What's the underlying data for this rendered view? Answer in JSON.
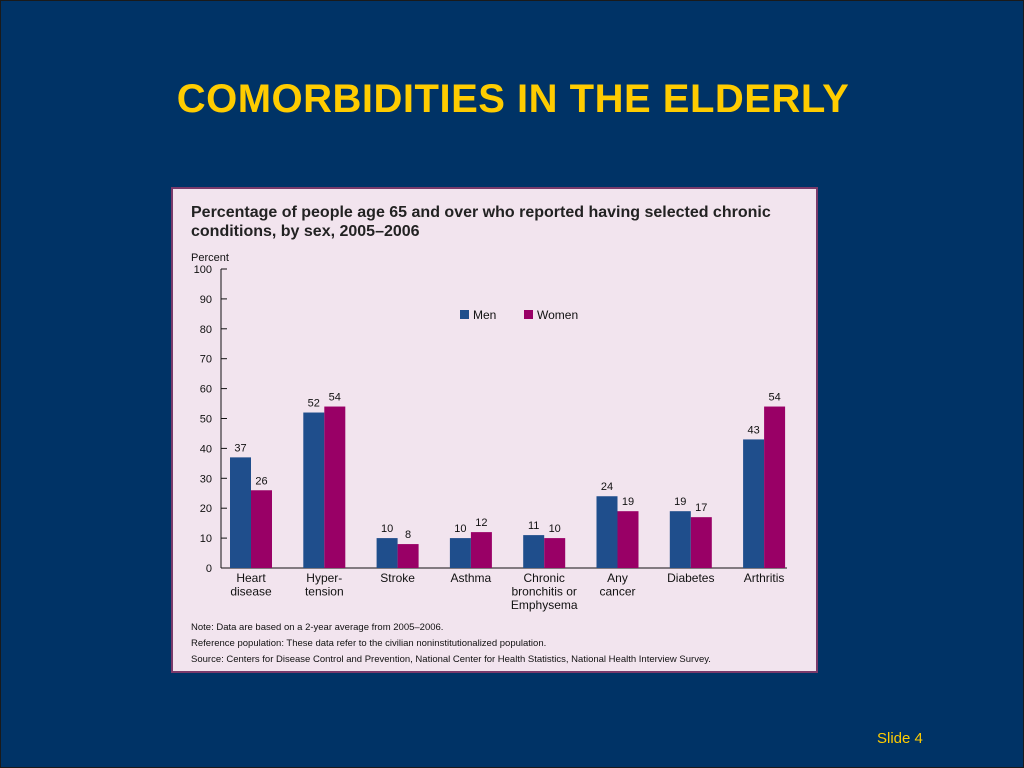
{
  "slide": {
    "title": "COMORBIDITIES IN THE ELDERLY",
    "slide_number": "Slide 4"
  },
  "colors": {
    "background": "#003366",
    "title": "#ffcc00",
    "panel": "#f2e4ee",
    "men": "#1f4e8c",
    "women": "#990066"
  },
  "chart_data": {
    "type": "bar",
    "title_lines": [
      "Percentage of people age 65 and over who reported having selected chronic",
      "conditions, by sex, 2005–2006"
    ],
    "ylabel": "Percent",
    "ylim": [
      0,
      100
    ],
    "yticks": [
      "0",
      "10",
      "20",
      "30",
      "40",
      "50",
      "60",
      "70",
      "80",
      "90",
      "100"
    ],
    "categories": [
      [
        "Heart",
        "disease"
      ],
      [
        "Hyper-",
        "tension"
      ],
      [
        "Stroke"
      ],
      [
        "Asthma"
      ],
      [
        "Chronic",
        "bronchitis or",
        "Emphysema"
      ],
      [
        "Any",
        "cancer"
      ],
      [
        "Diabetes"
      ],
      [
        "Arthritis"
      ]
    ],
    "series": [
      {
        "name": "Men",
        "values": [
          37,
          52,
          10,
          10,
          11,
          24,
          19,
          43
        ]
      },
      {
        "name": "Women",
        "values": [
          26,
          54,
          8,
          12,
          10,
          19,
          17,
          54
        ]
      }
    ],
    "legend_position": "top-center",
    "grid": false,
    "notes": [
      "Note:  Data are based on a 2-year average from 2005–2006.",
      "Reference population: These data refer to the civilian noninstitutionalized population.",
      "Source:  Centers for Disease Control and Prevention, National Center for Health Statistics, National Health Interview Survey."
    ]
  }
}
